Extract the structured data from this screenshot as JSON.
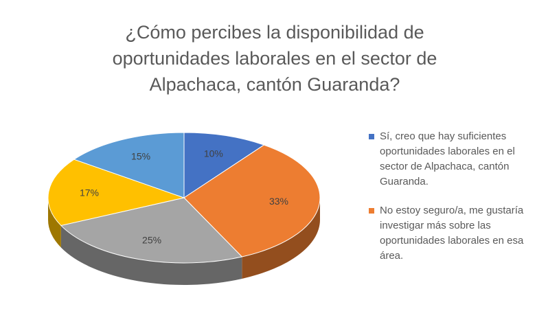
{
  "chart_data": {
    "type": "pie3d",
    "title": "¿Cómo percibes la disponibilidad de oportunidades laborales en el sector de Alpachaca, cantón Guaranda?",
    "categories": [
      "Sí, creo que hay suficientes oportunidades laborales en el sector de Alpachaca, cantón Guaranda.",
      "No estoy seguro/a, me gustaría investigar más sobre las oportunidades laborales en esa área.",
      null,
      null,
      null
    ],
    "values": [
      10,
      33,
      25,
      17,
      15
    ],
    "value_labels": [
      "10%",
      "33%",
      "25%",
      "17%",
      "15%"
    ],
    "colors": [
      "#4472c4",
      "#ed7d31",
      "#a5a5a5",
      "#ffc000",
      "#5b9bd5"
    ],
    "legend": "right"
  }
}
